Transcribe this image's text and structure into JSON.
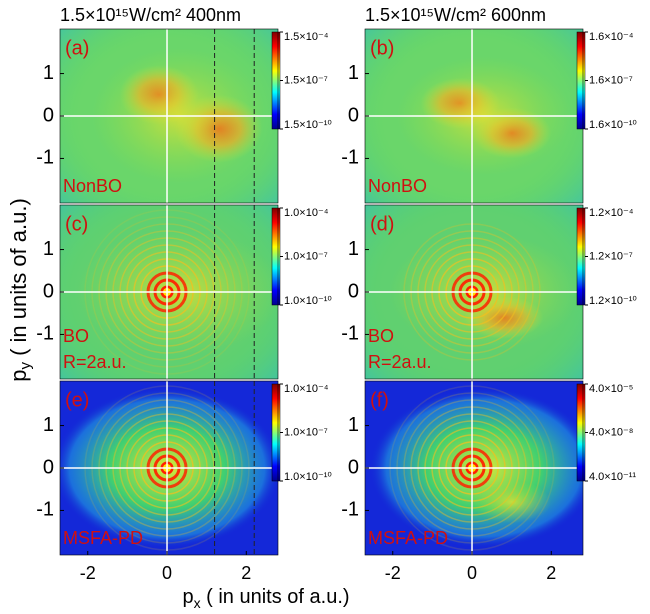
{
  "figure": {
    "xlabel": {
      "symbol": "p",
      "subscript": "x",
      "text": " ( in units of a.u.)"
    },
    "ylabel": {
      "symbol": "p",
      "subscript": "y",
      "text": " ( in units of a.u.)"
    }
  },
  "chart_data": [
    {
      "type": "heatmap",
      "title": "1.5×10¹⁵W/cm² 400nm",
      "panel_label": "(a)",
      "annotations": [
        "NonBO"
      ],
      "xlim": [
        -2.7,
        2.8
      ],
      "ylim": [
        -2.05,
        2.05
      ],
      "yticks": [
        1,
        0,
        -1
      ],
      "grid": true,
      "dashed_lines_x": [
        1.2,
        2.2
      ],
      "colorbar": {
        "log": true,
        "lim": [
          1.5e-10,
          0.00015
        ],
        "ticks": [
          {
            "value": 0.00015,
            "label": "1.5×10⁻⁴"
          },
          {
            "value": 1.5e-07,
            "label": "1.5×10⁻⁷"
          },
          {
            "value": 1.5e-10,
            "label": "1.5×10⁻¹⁰"
          }
        ]
      }
    },
    {
      "type": "heatmap",
      "title": "1.5×10¹⁵W/cm² 600nm",
      "panel_label": "(b)",
      "annotations": [
        "NonBO"
      ],
      "xlim": [
        -2.7,
        2.8
      ],
      "ylim": [
        -2.05,
        2.05
      ],
      "yticks": [
        1,
        0,
        -1
      ],
      "grid": true,
      "colorbar": {
        "log": true,
        "lim": [
          1.6e-10,
          0.00016
        ],
        "ticks": [
          {
            "value": 0.00016,
            "label": "1.6×10⁻⁴"
          },
          {
            "value": 1.6e-07,
            "label": "1.6×10⁻⁷"
          },
          {
            "value": 1.6e-10,
            "label": "1.6×10⁻¹⁰"
          }
        ]
      }
    },
    {
      "type": "heatmap",
      "panel_label": "(c)",
      "annotations": [
        "BO",
        "R=2a.u."
      ],
      "xlim": [
        -2.7,
        2.8
      ],
      "ylim": [
        -2.05,
        2.05
      ],
      "yticks": [
        1,
        0,
        -1
      ],
      "grid": true,
      "dashed_lines_x": [
        1.2,
        2.2
      ],
      "colorbar": {
        "log": true,
        "lim": [
          1e-10,
          0.0001
        ],
        "ticks": [
          {
            "value": 0.0001,
            "label": "1.0×10⁻⁴"
          },
          {
            "value": 1e-07,
            "label": "1.0×10⁻⁷"
          },
          {
            "value": 1e-10,
            "label": "1.0×10⁻¹⁰"
          }
        ]
      }
    },
    {
      "type": "heatmap",
      "panel_label": "(d)",
      "annotations": [
        "BO",
        "R=2a.u."
      ],
      "xlim": [
        -2.7,
        2.8
      ],
      "ylim": [
        -2.05,
        2.05
      ],
      "yticks": [
        1,
        0,
        -1
      ],
      "grid": true,
      "colorbar": {
        "log": true,
        "lim": [
          1.2e-10,
          0.00012
        ],
        "ticks": [
          {
            "value": 0.00012,
            "label": "1.2×10⁻⁴"
          },
          {
            "value": 1.2e-07,
            "label": "1.2×10⁻⁷"
          },
          {
            "value": 1.2e-10,
            "label": "1.2×10⁻¹⁰"
          }
        ]
      }
    },
    {
      "type": "heatmap",
      "panel_label": "(e)",
      "annotations": [
        "MSFA-PD"
      ],
      "xlim": [
        -2.7,
        2.8
      ],
      "ylim": [
        -2.05,
        2.05
      ],
      "xticks": [
        -2,
        0,
        2
      ],
      "yticks": [
        1,
        0,
        -1
      ],
      "grid": true,
      "dashed_lines_x": [
        1.2,
        2.2
      ],
      "colorbar": {
        "log": true,
        "lim": [
          1e-10,
          0.0001
        ],
        "ticks": [
          {
            "value": 0.0001,
            "label": "1.0×10⁻⁴"
          },
          {
            "value": 1e-07,
            "label": "1.0×10⁻⁷"
          },
          {
            "value": 1e-10,
            "label": "1.0×10⁻¹⁰"
          }
        ]
      }
    },
    {
      "type": "heatmap",
      "panel_label": "(f)",
      "annotations": [
        "MSFA-PD"
      ],
      "xlim": [
        -2.7,
        2.8
      ],
      "ylim": [
        -2.05,
        2.05
      ],
      "xticks": [
        -2,
        0,
        2
      ],
      "yticks": [
        1,
        0,
        -1
      ],
      "grid": true,
      "colorbar": {
        "log": true,
        "lim": [
          4e-11,
          4e-05
        ],
        "ticks": [
          {
            "value": 4e-05,
            "label": "4.0×10⁻⁵"
          },
          {
            "value": 4e-08,
            "label": "4.0×10⁻⁸"
          },
          {
            "value": 4e-11,
            "label": "4.0×10⁻¹¹"
          }
        ]
      }
    }
  ]
}
